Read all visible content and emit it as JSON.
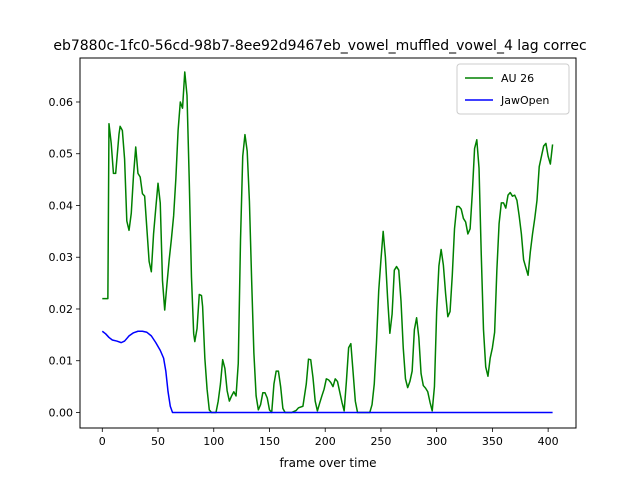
{
  "chart_data": {
    "type": "line",
    "title": "eb7880c-1fc0-56cd-98b7-8ee92d9467eb_vowel_muffled_vowel_4  lag correc",
    "xlabel": "frame over time",
    "ylabel": "",
    "xlim": [
      -20,
      425
    ],
    "ylim": [
      -0.003,
      0.0685
    ],
    "x_ticks": [
      0,
      50,
      100,
      150,
      200,
      250,
      300,
      350,
      400
    ],
    "y_ticks": [
      0.0,
      0.01,
      0.02,
      0.03,
      0.04,
      0.05,
      0.06
    ],
    "x_tick_labels": [
      "0",
      "50",
      "100",
      "150",
      "200",
      "250",
      "300",
      "350",
      "400"
    ],
    "y_tick_labels": [
      "0.00",
      "0.01",
      "0.02",
      "0.03",
      "0.04",
      "0.05",
      "0.06"
    ],
    "grid": false,
    "legend_position": "top-right",
    "series": [
      {
        "name": "AU 26",
        "color": "#008000",
        "points": [
          [
            0,
            0.022
          ],
          [
            5,
            0.022
          ],
          [
            6,
            0.0558
          ],
          [
            8,
            0.052
          ],
          [
            10,
            0.0462
          ],
          [
            12,
            0.0462
          ],
          [
            15,
            0.0538
          ],
          [
            16,
            0.0553
          ],
          [
            18,
            0.0545
          ],
          [
            20,
            0.049
          ],
          [
            22,
            0.037
          ],
          [
            24,
            0.0352
          ],
          [
            26,
            0.0385
          ],
          [
            28,
            0.0458
          ],
          [
            30,
            0.0513
          ],
          [
            32,
            0.0462
          ],
          [
            34,
            0.0455
          ],
          [
            36,
            0.0423
          ],
          [
            38,
            0.0418
          ],
          [
            40,
            0.0355
          ],
          [
            42,
            0.0292
          ],
          [
            44,
            0.0272
          ],
          [
            46,
            0.0345
          ],
          [
            48,
            0.0395
          ],
          [
            50,
            0.0443
          ],
          [
            52,
            0.0405
          ],
          [
            54,
            0.0255
          ],
          [
            56,
            0.0198
          ],
          [
            58,
            0.0248
          ],
          [
            60,
            0.0295
          ],
          [
            62,
            0.0335
          ],
          [
            64,
            0.038
          ],
          [
            66,
            0.0452
          ],
          [
            68,
            0.0545
          ],
          [
            70,
            0.06
          ],
          [
            72,
            0.0588
          ],
          [
            74,
            0.0658
          ],
          [
            76,
            0.0613
          ],
          [
            78,
            0.045
          ],
          [
            80,
            0.0262
          ],
          [
            82,
            0.0152
          ],
          [
            83,
            0.0137
          ],
          [
            85,
            0.0162
          ],
          [
            87,
            0.0228
          ],
          [
            89,
            0.0226
          ],
          [
            90,
            0.0205
          ],
          [
            92,
            0.0105
          ],
          [
            94,
            0.0045
          ],
          [
            96,
            0.0005
          ],
          [
            98,
            0.0
          ],
          [
            100,
            0.0
          ],
          [
            102,
            0.0
          ],
          [
            104,
            0.0022
          ],
          [
            106,
            0.0055
          ],
          [
            108,
            0.0102
          ],
          [
            110,
            0.0085
          ],
          [
            112,
            0.0042
          ],
          [
            114,
            0.0022
          ],
          [
            116,
            0.0032
          ],
          [
            118,
            0.004
          ],
          [
            120,
            0.0032
          ],
          [
            122,
            0.0095
          ],
          [
            124,
            0.0332
          ],
          [
            126,
            0.0495
          ],
          [
            128,
            0.0537
          ],
          [
            130,
            0.0505
          ],
          [
            132,
            0.0408
          ],
          [
            134,
            0.0255
          ],
          [
            136,
            0.0115
          ],
          [
            138,
            0.0032
          ],
          [
            140,
            0.0005
          ],
          [
            142,
            0.0015
          ],
          [
            144,
            0.0038
          ],
          [
            146,
            0.0038
          ],
          [
            148,
            0.0028
          ],
          [
            150,
            0.0005
          ],
          [
            152,
            0.0
          ],
          [
            154,
            0.0055
          ],
          [
            156,
            0.008
          ],
          [
            158,
            0.008
          ],
          [
            160,
            0.005
          ],
          [
            162,
            0.0008
          ],
          [
            164,
            0.0
          ],
          [
            170,
            0.0
          ],
          [
            174,
            0.0004
          ],
          [
            176,
            0.0009
          ],
          [
            180,
            0.0012
          ],
          [
            183,
            0.0055
          ],
          [
            185,
            0.0103
          ],
          [
            187,
            0.0102
          ],
          [
            189,
            0.0068
          ],
          [
            191,
            0.0022
          ],
          [
            193,
            0.0003
          ],
          [
            195,
            0.0018
          ],
          [
            197,
            0.0032
          ],
          [
            199,
            0.0045
          ],
          [
            201,
            0.0065
          ],
          [
            203,
            0.0063
          ],
          [
            205,
            0.0058
          ],
          [
            207,
            0.005
          ],
          [
            209,
            0.0065
          ],
          [
            211,
            0.006
          ],
          [
            213,
            0.004
          ],
          [
            215,
            0.002
          ],
          [
            217,
            0.0003
          ],
          [
            219,
            0.006
          ],
          [
            221,
            0.0125
          ],
          [
            223,
            0.0133
          ],
          [
            225,
            0.0078
          ],
          [
            227,
            0.0022
          ],
          [
            229,
            0.0
          ],
          [
            234,
            0.0
          ],
          [
            240,
            0.0
          ],
          [
            242,
            0.0015
          ],
          [
            244,
            0.0055
          ],
          [
            246,
            0.0135
          ],
          [
            248,
            0.0235
          ],
          [
            250,
            0.0295
          ],
          [
            252,
            0.035
          ],
          [
            254,
            0.03
          ],
          [
            256,
            0.022
          ],
          [
            258,
            0.0153
          ],
          [
            260,
            0.019
          ],
          [
            262,
            0.0275
          ],
          [
            264,
            0.0282
          ],
          [
            266,
            0.0275
          ],
          [
            268,
            0.0215
          ],
          [
            270,
            0.0125
          ],
          [
            272,
            0.0065
          ],
          [
            274,
            0.0048
          ],
          [
            276,
            0.006
          ],
          [
            278,
            0.008
          ],
          [
            280,
            0.016
          ],
          [
            282,
            0.0183
          ],
          [
            284,
            0.0145
          ],
          [
            286,
            0.0075
          ],
          [
            288,
            0.0052
          ],
          [
            290,
            0.0047
          ],
          [
            292,
            0.004
          ],
          [
            294,
            0.002
          ],
          [
            296,
            0.0003
          ],
          [
            298,
            0.005
          ],
          [
            300,
            0.0195
          ],
          [
            302,
            0.0283
          ],
          [
            304,
            0.0315
          ],
          [
            306,
            0.0285
          ],
          [
            308,
            0.023
          ],
          [
            310,
            0.0185
          ],
          [
            312,
            0.0195
          ],
          [
            314,
            0.0265
          ],
          [
            316,
            0.0355
          ],
          [
            318,
            0.0398
          ],
          [
            320,
            0.0398
          ],
          [
            322,
            0.0393
          ],
          [
            324,
            0.0375
          ],
          [
            326,
            0.0368
          ],
          [
            328,
            0.0345
          ],
          [
            330,
            0.0355
          ],
          [
            332,
            0.0425
          ],
          [
            334,
            0.051
          ],
          [
            336,
            0.0527
          ],
          [
            338,
            0.0472
          ],
          [
            340,
            0.0305
          ],
          [
            342,
            0.016
          ],
          [
            344,
            0.0088
          ],
          [
            346,
            0.007
          ],
          [
            348,
            0.0105
          ],
          [
            350,
            0.0125
          ],
          [
            352,
            0.0155
          ],
          [
            354,
            0.0275
          ],
          [
            356,
            0.0365
          ],
          [
            358,
            0.0405
          ],
          [
            360,
            0.0405
          ],
          [
            362,
            0.0395
          ],
          [
            364,
            0.042
          ],
          [
            366,
            0.0425
          ],
          [
            368,
            0.0418
          ],
          [
            370,
            0.042
          ],
          [
            372,
            0.041
          ],
          [
            374,
            0.038
          ],
          [
            376,
            0.0345
          ],
          [
            378,
            0.0295
          ],
          [
            380,
            0.028
          ],
          [
            382,
            0.0265
          ],
          [
            384,
            0.031
          ],
          [
            386,
            0.0345
          ],
          [
            388,
            0.0375
          ],
          [
            390,
            0.041
          ],
          [
            392,
            0.0475
          ],
          [
            394,
            0.0495
          ],
          [
            396,
            0.0515
          ],
          [
            398,
            0.052
          ],
          [
            400,
            0.0495
          ],
          [
            402,
            0.048
          ],
          [
            404,
            0.0518
          ]
        ]
      },
      {
        "name": "JawOpen",
        "color": "#0000ff",
        "points": [
          [
            0,
            0.0157
          ],
          [
            3,
            0.0152
          ],
          [
            6,
            0.0145
          ],
          [
            9,
            0.014
          ],
          [
            13,
            0.0138
          ],
          [
            17,
            0.0135
          ],
          [
            20,
            0.0138
          ],
          [
            24,
            0.0148
          ],
          [
            28,
            0.0154
          ],
          [
            32,
            0.0157
          ],
          [
            36,
            0.0157
          ],
          [
            40,
            0.0155
          ],
          [
            44,
            0.0148
          ],
          [
            48,
            0.0135
          ],
          [
            52,
            0.012
          ],
          [
            55,
            0.0105
          ],
          [
            57,
            0.008
          ],
          [
            59,
            0.004
          ],
          [
            61,
            0.0012
          ],
          [
            63,
            0.0
          ],
          [
            70,
            0.0
          ],
          [
            100,
            0.0
          ],
          [
            150,
            0.0
          ],
          [
            200,
            0.0
          ],
          [
            250,
            0.0
          ],
          [
            300,
            0.0
          ],
          [
            350,
            0.0
          ],
          [
            404,
            0.0
          ]
        ]
      }
    ]
  }
}
